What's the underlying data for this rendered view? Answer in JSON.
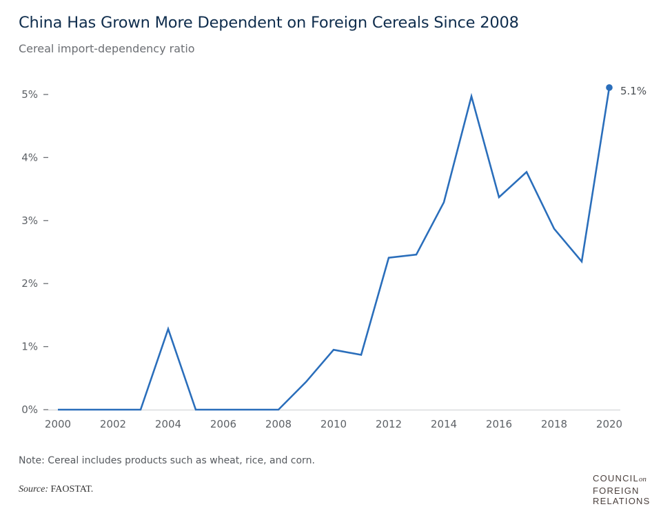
{
  "chart_data": {
    "type": "line",
    "title": "China Has Grown More Dependent on Foreign Cereals Since 2008",
    "subtitle": "Cereal import-dependency ratio",
    "xlabel": "",
    "ylabel": "",
    "x": [
      2000,
      2001,
      2002,
      2003,
      2004,
      2005,
      2006,
      2007,
      2008,
      2009,
      2010,
      2011,
      2012,
      2013,
      2014,
      2015,
      2016,
      2017,
      2018,
      2019,
      2020
    ],
    "series": [
      {
        "name": "Cereal import-dependency ratio",
        "color": "#2a6ebb",
        "values": [
          0,
          0,
          0,
          0,
          1.28,
          0,
          0,
          0,
          0,
          0.44,
          0.95,
          0.87,
          2.41,
          2.46,
          3.29,
          4.97,
          3.37,
          3.77,
          2.87,
          2.35,
          5.11
        ]
      }
    ],
    "xlim": [
      2000,
      2020
    ],
    "ylim": [
      0,
      5
    ],
    "xticks": [
      2000,
      2002,
      2004,
      2006,
      2008,
      2010,
      2012,
      2014,
      2016,
      2018,
      2020
    ],
    "xtick_labels": [
      "2000",
      "2002",
      "2004",
      "2006",
      "2008",
      "2010",
      "2012",
      "2014",
      "2016",
      "2018",
      "2020"
    ],
    "yticks": [
      0,
      1,
      2,
      3,
      4,
      5
    ],
    "ytick_labels": [
      "0%",
      "1%",
      "2%",
      "3%",
      "4%",
      "5%"
    ],
    "grid": false,
    "annotations": [
      {
        "x": 2020,
        "y": 5.11,
        "text": "5.1%"
      }
    ]
  },
  "footer": {
    "note": "Note: Cereal includes products such as wheat, rice, and corn.",
    "source_label": "Source:",
    "source_value": "FAOSTAT."
  },
  "logo": {
    "line1": "COUNCIL",
    "on": "on",
    "line2": "FOREIGN",
    "line3": "RELATIONS"
  }
}
